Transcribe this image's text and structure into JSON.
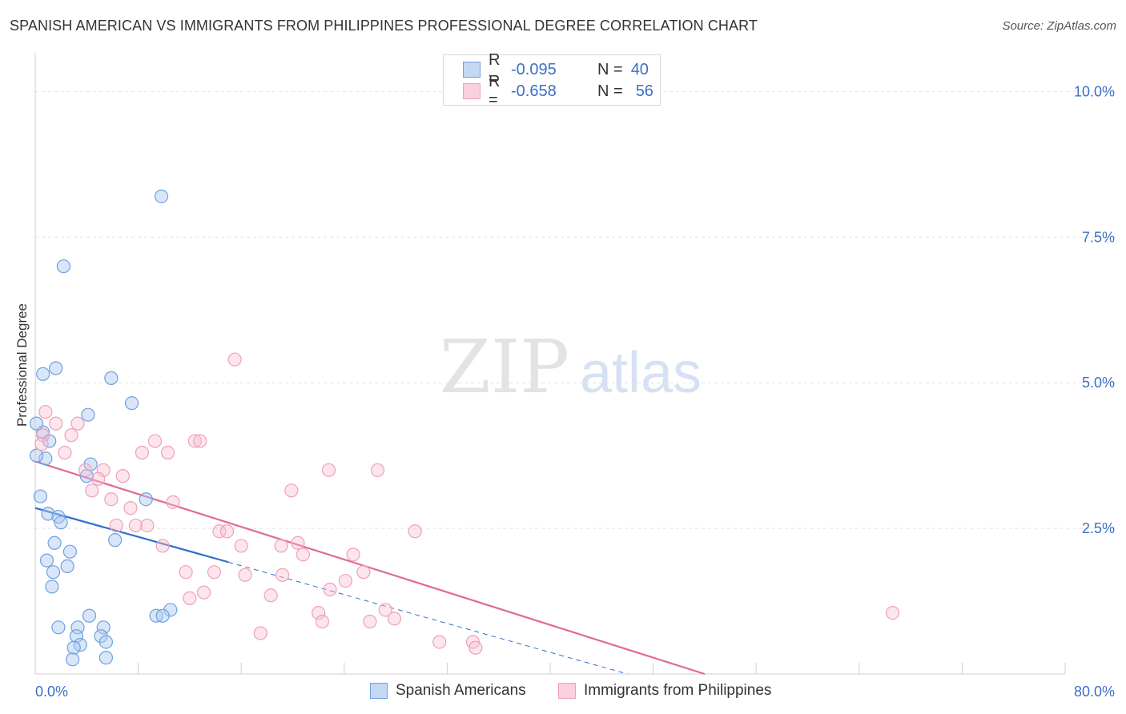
{
  "title": "SPANISH AMERICAN VS IMMIGRANTS FROM PHILIPPINES PROFESSIONAL DEGREE CORRELATION CHART",
  "source": "Source: ZipAtlas.com",
  "watermark": {
    "zip": "ZIP",
    "atlas": "atlas"
  },
  "legend": {
    "rows": [
      {
        "r_label": "R =",
        "r_value": "-0.095",
        "n_label": "N =",
        "n_value": "40",
        "color": "#6fa0e0"
      },
      {
        "r_label": "R =",
        "r_value": "-0.658",
        "n_label": "N =",
        "n_value": "56",
        "color": "#f0a0b8"
      }
    ]
  },
  "bottom_legend": [
    "Spanish Americans",
    "Immigrants from Philippines"
  ],
  "colors": {
    "blue": "#6fa0e0",
    "blue_line": "#2f6fcf",
    "pink": "#f0a0b8",
    "pink_line": "#e06a93",
    "tick_text": "#3d6fc6"
  },
  "chart_data": {
    "type": "scatter",
    "title": "SPANISH AMERICAN VS IMMIGRANTS FROM PHILIPPINES PROFESSIONAL DEGREE CORRELATION CHART",
    "xlabel": "",
    "ylabel": "Professional Degree",
    "xlim": [
      0,
      80
    ],
    "ylim": [
      0,
      10.5
    ],
    "x_tick_labels": [
      "0.0%",
      "80.0%"
    ],
    "y_ticks": [
      2.5,
      5.0,
      7.5,
      10.0
    ],
    "y_tick_labels": [
      "2.5%",
      "5.0%",
      "7.5%",
      "10.0%"
    ],
    "series": [
      {
        "name": "Spanish Americans",
        "color": "#6fa0e0",
        "points": [
          [
            9.8,
            8.2
          ],
          [
            2.2,
            7.0
          ],
          [
            1.6,
            5.25
          ],
          [
            0.6,
            5.15
          ],
          [
            5.9,
            5.08
          ],
          [
            7.5,
            4.65
          ],
          [
            4.1,
            4.45
          ],
          [
            0.6,
            4.15
          ],
          [
            0.1,
            4.3
          ],
          [
            1.1,
            4.0
          ],
          [
            0.8,
            3.7
          ],
          [
            0.1,
            3.75
          ],
          [
            4.3,
            3.6
          ],
          [
            4.0,
            3.4
          ],
          [
            8.6,
            3.0
          ],
          [
            0.4,
            3.05
          ],
          [
            1.0,
            2.75
          ],
          [
            1.8,
            2.7
          ],
          [
            2.0,
            2.6
          ],
          [
            6.2,
            2.3
          ],
          [
            1.5,
            2.25
          ],
          [
            2.7,
            2.1
          ],
          [
            0.9,
            1.95
          ],
          [
            2.5,
            1.85
          ],
          [
            1.4,
            1.75
          ],
          [
            1.3,
            1.5
          ],
          [
            10.5,
            1.1
          ],
          [
            9.4,
            1.0
          ],
          [
            9.9,
            1.0
          ],
          [
            4.2,
            1.0
          ],
          [
            1.8,
            0.8
          ],
          [
            3.3,
            0.8
          ],
          [
            5.3,
            0.8
          ],
          [
            3.2,
            0.65
          ],
          [
            5.1,
            0.65
          ],
          [
            5.5,
            0.55
          ],
          [
            3.5,
            0.5
          ],
          [
            3.0,
            0.45
          ],
          [
            2.9,
            0.25
          ],
          [
            5.5,
            0.28
          ]
        ]
      },
      {
        "name": "Immigrants from Philippines",
        "color": "#f0a0b8",
        "points": [
          [
            15.5,
            5.4
          ],
          [
            0.8,
            4.5
          ],
          [
            1.6,
            4.3
          ],
          [
            3.3,
            4.3
          ],
          [
            0.6,
            4.1
          ],
          [
            2.8,
            4.1
          ],
          [
            9.3,
            4.0
          ],
          [
            12.4,
            4.0
          ],
          [
            12.8,
            4.0
          ],
          [
            0.5,
            3.95
          ],
          [
            8.3,
            3.8
          ],
          [
            10.3,
            3.8
          ],
          [
            2.3,
            3.8
          ],
          [
            3.9,
            3.5
          ],
          [
            5.3,
            3.5
          ],
          [
            22.8,
            3.5
          ],
          [
            26.6,
            3.5
          ],
          [
            4.9,
            3.35
          ],
          [
            6.8,
            3.4
          ],
          [
            4.4,
            3.15
          ],
          [
            19.9,
            3.15
          ],
          [
            5.9,
            3.0
          ],
          [
            10.7,
            2.95
          ],
          [
            7.4,
            2.85
          ],
          [
            6.3,
            2.55
          ],
          [
            7.8,
            2.55
          ],
          [
            8.7,
            2.55
          ],
          [
            14.3,
            2.45
          ],
          [
            14.9,
            2.45
          ],
          [
            29.5,
            2.45
          ],
          [
            20.4,
            2.25
          ],
          [
            16.0,
            2.2
          ],
          [
            19.1,
            2.2
          ],
          [
            9.9,
            2.2
          ],
          [
            24.7,
            2.05
          ],
          [
            20.8,
            2.05
          ],
          [
            11.7,
            1.75
          ],
          [
            13.9,
            1.75
          ],
          [
            16.3,
            1.7
          ],
          [
            19.2,
            1.7
          ],
          [
            25.5,
            1.75
          ],
          [
            24.1,
            1.6
          ],
          [
            22.9,
            1.45
          ],
          [
            12.0,
            1.3
          ],
          [
            13.1,
            1.4
          ],
          [
            18.3,
            1.35
          ],
          [
            22.0,
            1.05
          ],
          [
            27.2,
            1.1
          ],
          [
            22.3,
            0.9
          ],
          [
            26.0,
            0.9
          ],
          [
            27.9,
            0.95
          ],
          [
            17.5,
            0.7
          ],
          [
            31.4,
            0.55
          ],
          [
            34.0,
            0.55
          ],
          [
            34.2,
            0.45
          ],
          [
            66.6,
            1.05
          ]
        ]
      }
    ],
    "trend_lines": [
      {
        "series": "Spanish Americans",
        "x_start": 0,
        "y_start": 2.85,
        "x_solid_end": 15,
        "x_end": 46,
        "y_end": 0.0
      },
      {
        "series": "Immigrants from Philippines",
        "x_start": 0,
        "y_start": 3.65,
        "x_end": 52,
        "y_end": 0.0
      }
    ]
  }
}
